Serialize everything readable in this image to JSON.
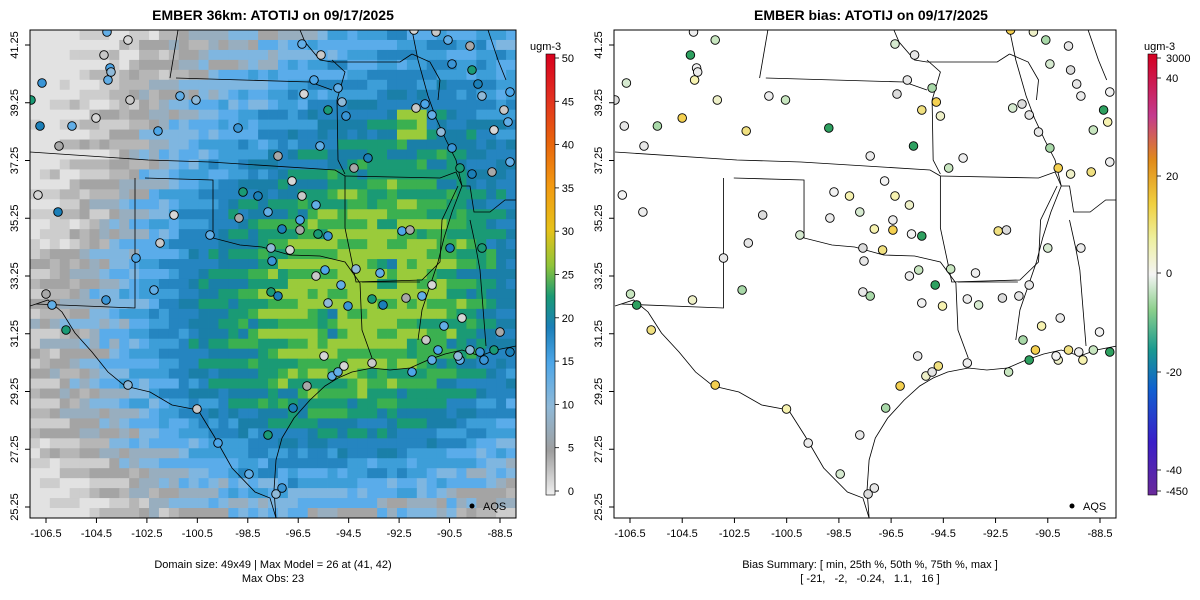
{
  "left_panel": {
    "title": "EMBER 36km: ATOTIJ on 09/17/2025",
    "footer_line1": "Domain size: 49x49 | Max Model = 26 at (41, 42)",
    "footer_line2": "Max Obs: 23",
    "legend_label": "AQS",
    "colorbar": {
      "unit": "ugm-3",
      "ticks": [
        "0",
        "5",
        "10",
        "15",
        "20",
        "25",
        "30",
        "35",
        "40",
        "45",
        "50"
      ],
      "range": [
        0,
        50
      ]
    }
  },
  "right_panel": {
    "title": "EMBER bias: ATOTIJ on 09/17/2025",
    "footer_line1": "Bias Summary: [ min, 25th %, 50th %, 75th %, max ]",
    "footer_line2": "[ -21,   -2,   -0.24,   1.1,   16 ]",
    "legend_label": "AQS",
    "colorbar": {
      "unit": "ugm-3",
      "ticks": [
        "3000",
        "40",
        "20",
        "0",
        "-20",
        "-40",
        "-450"
      ]
    }
  },
  "axes": {
    "lon_ticks": [
      "-106.5",
      "-104.5",
      "-102.5",
      "-100.5",
      "-98.5",
      "-96.5",
      "-94.5",
      "-92.5",
      "-90.5",
      "-88.5"
    ],
    "lat_ticks": [
      "25.25",
      "27.25",
      "29.25",
      "31.25",
      "33.25",
      "35.25",
      "37.25",
      "39.25",
      "41.25"
    ]
  },
  "chart_data": {
    "type": "heatmap",
    "domain": "south-central United States",
    "lon_range": [
      -107.5,
      -88
    ],
    "lat_range": [
      25,
      41.5
    ],
    "variable": "ATOTIJ",
    "date": "09/17/2025",
    "model_grid": "49x49",
    "max_model": 26,
    "max_obs": 23,
    "bias_summary": {
      "min": -21,
      "p25": -2,
      "p50": -0.24,
      "p75": 1.1,
      "max": 16
    },
    "obs_network": "AQS"
  },
  "colors": {
    "frame": "#000000",
    "concentration_scale": [
      "#e4e4e4",
      "#c8c8c8",
      "#a8a8a8",
      "#8fb9d8",
      "#62aee6",
      "#4da6e8",
      "#1b7fb8",
      "#1a9a75",
      "#2db35a",
      "#9acb3b",
      "#e6c21a",
      "#f29a12",
      "#ec6a0c",
      "#e23a0c",
      "#e4201c",
      "#d8001e"
    ],
    "bias_scale": [
      "#d40020",
      "#c43b8e",
      "#e08a1a",
      "#f0d040",
      "#eef0a0",
      "#f2f2f2",
      "#b8e0b8",
      "#2ea060",
      "#1a8ca0",
      "#1040c8",
      "#6a2a9a"
    ]
  }
}
